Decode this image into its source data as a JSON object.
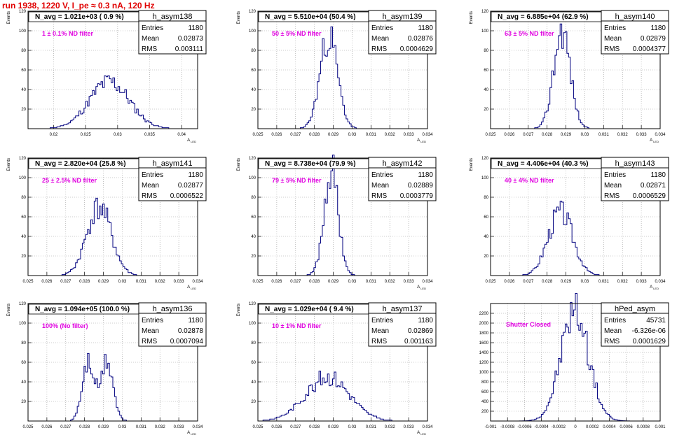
{
  "header": {
    "run_title": "run 1938,  1220 V, I_pe ≈ 0.3 nA, 120 Hz"
  },
  "colors": {
    "hist": "#00007f",
    "title_red": "#e00000",
    "label_magenta": "#e000e0",
    "grid": "#9a9a9a"
  },
  "chart_data": [
    {
      "type": "histogram",
      "name": "h_asym138",
      "navg": "N_avg = 1.021e+03 ( 0.9 %)",
      "filter": "1 ± 0.1% ND filter",
      "stats": {
        "entries": "1180",
        "mean": "0.02873",
        "rms": "0.003111"
      },
      "ylabel": "Events",
      "xlabel": "A_LED",
      "xlim": [
        0.016,
        0.0425
      ],
      "xticks": [
        "0.02",
        "0.025",
        "0.03",
        "0.035",
        "0.04"
      ],
      "xtick_vals": [
        0.02,
        0.025,
        0.03,
        0.035,
        0.04
      ],
      "ylim": [
        0,
        120
      ],
      "yticks": [
        "20",
        "40",
        "60",
        "80",
        "100",
        "120"
      ],
      "ytick_vals": [
        20,
        40,
        60,
        80,
        100,
        120
      ],
      "dist": {
        "mean": 0.02873,
        "rms": 0.003111,
        "peak": 48,
        "seed": 11
      }
    },
    {
      "type": "histogram",
      "name": "h_asym139",
      "navg": "N_avg = 5.510e+04 (50.4 %)",
      "filter": "50 ± 5% ND filter",
      "stats": {
        "entries": "1180",
        "mean": "0.02876",
        "rms": "0.0004629"
      },
      "ylabel": "Events",
      "xlabel": "A_LED",
      "xlim": [
        0.025,
        0.034
      ],
      "xticks": [
        "0.025",
        "0.026",
        "0.027",
        "0.028",
        "0.029",
        "0.03",
        "0.031",
        "0.032",
        "0.033",
        "0.034"
      ],
      "xtick_vals": [
        0.025,
        0.026,
        0.027,
        0.028,
        0.029,
        0.03,
        0.031,
        0.032,
        0.033,
        0.034
      ],
      "ylim": [
        0,
        120
      ],
      "yticks": [
        "20",
        "40",
        "60",
        "80",
        "100",
        "120"
      ],
      "ytick_vals": [
        20,
        40,
        60,
        80,
        100,
        120
      ],
      "dist": {
        "mean": 0.02876,
        "rms": 0.0004629,
        "peak": 95,
        "seed": 23
      }
    },
    {
      "type": "histogram",
      "name": "h_asym140",
      "navg": "N_avg = 6.885e+04 (62.9 %)",
      "filter": "63 ± 5% ND filter",
      "stats": {
        "entries": "1180",
        "mean": "0.02879",
        "rms": "0.0004377"
      },
      "ylabel": "Events",
      "xlabel": "A_LED",
      "xlim": [
        0.025,
        0.034
      ],
      "xticks": [
        "0.025",
        "0.026",
        "0.027",
        "0.028",
        "0.029",
        "0.03",
        "0.031",
        "0.032",
        "0.033",
        "0.034"
      ],
      "xtick_vals": [
        0.025,
        0.026,
        0.027,
        0.028,
        0.029,
        0.03,
        0.031,
        0.032,
        0.033,
        0.034
      ],
      "ylim": [
        0,
        120
      ],
      "yticks": [
        "20",
        "40",
        "60",
        "80",
        "100",
        "120"
      ],
      "ytick_vals": [
        20,
        40,
        60,
        80,
        100,
        120
      ],
      "dist": {
        "mean": 0.02879,
        "rms": 0.0004377,
        "peak": 102,
        "seed": 37
      }
    },
    {
      "type": "histogram",
      "name": "h_asym141",
      "navg": "N_avg = 2.820e+04 (25.8 %)",
      "filter": "25 ± 2.5% ND filter",
      "stats": {
        "entries": "1180",
        "mean": "0.02877",
        "rms": "0.0006522"
      },
      "ylabel": "Events",
      "xlabel": "A_LED",
      "xlim": [
        0.025,
        0.034
      ],
      "xticks": [
        "0.025",
        "0.026",
        "0.027",
        "0.028",
        "0.029",
        "0.03",
        "0.031",
        "0.032",
        "0.033",
        "0.034"
      ],
      "xtick_vals": [
        0.025,
        0.026,
        0.027,
        0.028,
        0.029,
        0.03,
        0.031,
        0.032,
        0.033,
        0.034
      ],
      "ylim": [
        0,
        120
      ],
      "yticks": [
        "20",
        "40",
        "60",
        "80",
        "100",
        "120"
      ],
      "ytick_vals": [
        20,
        40,
        60,
        80,
        100,
        120
      ],
      "dist": {
        "mean": 0.02877,
        "rms": 0.0006522,
        "peak": 70,
        "seed": 41
      }
    },
    {
      "type": "histogram",
      "name": "h_asym142",
      "navg": "N_avg = 8.738e+04 (79.9 %)",
      "filter": "79 ± 5% ND filter",
      "stats": {
        "entries": "1180",
        "mean": "0.02889",
        "rms": "0.0003779"
      },
      "ylabel": "Events",
      "xlabel": "A_LED",
      "xlim": [
        0.025,
        0.034
      ],
      "xticks": [
        "0.025",
        "0.026",
        "0.027",
        "0.028",
        "0.029",
        "0.03",
        "0.031",
        "0.032",
        "0.033",
        "0.034"
      ],
      "xtick_vals": [
        0.025,
        0.026,
        0.027,
        0.028,
        0.029,
        0.03,
        0.031,
        0.032,
        0.033,
        0.034
      ],
      "ylim": [
        0,
        120
      ],
      "yticks": [
        "20",
        "40",
        "60",
        "80",
        "100",
        "120"
      ],
      "ytick_vals": [
        20,
        40,
        60,
        80,
        100,
        120
      ],
      "dist": {
        "mean": 0.02889,
        "rms": 0.0003779,
        "peak": 108,
        "seed": 53
      }
    },
    {
      "type": "histogram",
      "name": "h_asym143",
      "navg": "N_avg = 4.406e+04 (40.3 %)",
      "filter": "40 ± 4% ND filter",
      "stats": {
        "entries": "1180",
        "mean": "0.02871",
        "rms": "0.0006529"
      },
      "ylabel": "Events",
      "xlabel": "A_LED",
      "xlim": [
        0.025,
        0.034
      ],
      "xticks": [
        "0.025",
        "0.026",
        "0.027",
        "0.028",
        "0.029",
        "0.03",
        "0.031",
        "0.032",
        "0.033",
        "0.034"
      ],
      "xtick_vals": [
        0.025,
        0.026,
        0.027,
        0.028,
        0.029,
        0.03,
        0.031,
        0.032,
        0.033,
        0.034
      ],
      "ylim": [
        0,
        120
      ],
      "yticks": [
        "20",
        "40",
        "60",
        "80",
        "100",
        "120"
      ],
      "ytick_vals": [
        20,
        40,
        60,
        80,
        100,
        120
      ],
      "dist": {
        "mean": 0.02871,
        "rms": 0.0006529,
        "peak": 65,
        "seed": 67
      }
    },
    {
      "type": "histogram",
      "name": "h_asym136",
      "navg": "N_avg = 1.094e+05 (100.0 %)",
      "filter": "100% (No filter)",
      "stats": {
        "entries": "1180",
        "mean": "0.02878",
        "rms": "0.0007094"
      },
      "ylabel": "Events",
      "xlabel": "A_LED",
      "xlim": [
        0.025,
        0.034
      ],
      "xticks": [
        "0.025",
        "0.026",
        "0.027",
        "0.028",
        "0.029",
        "0.03",
        "0.031",
        "0.032",
        "0.033",
        "0.034"
      ],
      "xtick_vals": [
        0.025,
        0.026,
        0.027,
        0.028,
        0.029,
        0.03,
        0.031,
        0.032,
        0.033,
        0.034
      ],
      "ylim": [
        0,
        120
      ],
      "yticks": [
        "20",
        "40",
        "60",
        "80",
        "100",
        "120"
      ],
      "ytick_vals": [
        20,
        40,
        60,
        80,
        100,
        120
      ],
      "dist": {
        "mean": 0.02878,
        "rms": 0.0007094,
        "peak": 60,
        "seed": 71,
        "bimodal": [
          0.0282,
          0.0292
        ]
      }
    },
    {
      "type": "histogram",
      "name": "h_asym137",
      "navg": "N_avg = 1.029e+04 ( 9.4 %)",
      "filter": "10 ± 1% ND filter",
      "stats": {
        "entries": "1180",
        "mean": "0.02869",
        "rms": "0.001163"
      },
      "ylabel": "Events",
      "xlabel": "A_LED",
      "xlim": [
        0.025,
        0.034
      ],
      "xticks": [
        "0.025",
        "0.026",
        "0.027",
        "0.028",
        "0.029",
        "0.03",
        "0.031",
        "0.032",
        "0.033",
        "0.034"
      ],
      "xtick_vals": [
        0.025,
        0.026,
        0.027,
        0.028,
        0.029,
        0.03,
        0.031,
        0.032,
        0.033,
        0.034
      ],
      "ylim": [
        0,
        120
      ],
      "yticks": [
        "20",
        "40",
        "60",
        "80",
        "100",
        "120"
      ],
      "ytick_vals": [
        20,
        40,
        60,
        80,
        100,
        120
      ],
      "dist": {
        "mean": 0.02869,
        "rms": 0.001163,
        "peak": 45,
        "seed": 83
      }
    },
    {
      "type": "histogram",
      "name": "hPed_asym",
      "navg": "",
      "filter": "Shutter Closed",
      "stats": {
        "entries": "45731",
        "mean": "-6.326e-06",
        "rms": "0.0001629"
      },
      "ylabel": "",
      "xlabel": "",
      "xlim": [
        -0.001,
        0.001
      ],
      "xticks": [
        "-0.001",
        "-0.0008",
        "-0.0006",
        "-0.0004",
        "-0.0002",
        "0",
        "0.0002",
        "0.0004",
        "0.0006",
        "0.0008",
        "0.001"
      ],
      "xtick_vals": [
        -0.001,
        -0.0008,
        -0.0006,
        -0.0004,
        -0.0002,
        0,
        0.0002,
        0.0004,
        0.0006,
        0.0008,
        0.001
      ],
      "ylim": [
        0,
        2400
      ],
      "yticks": [
        "200",
        "400",
        "600",
        "800",
        "1000",
        "1200",
        "1400",
        "1600",
        "1800",
        "2000",
        "2200"
      ],
      "ytick_vals": [
        200,
        400,
        600,
        800,
        1000,
        1200,
        1400,
        1600,
        1800,
        2000,
        2200
      ],
      "dist": {
        "mean": -6.326e-06,
        "rms": 0.0001629,
        "peak": 2250,
        "seed": 97
      }
    }
  ]
}
